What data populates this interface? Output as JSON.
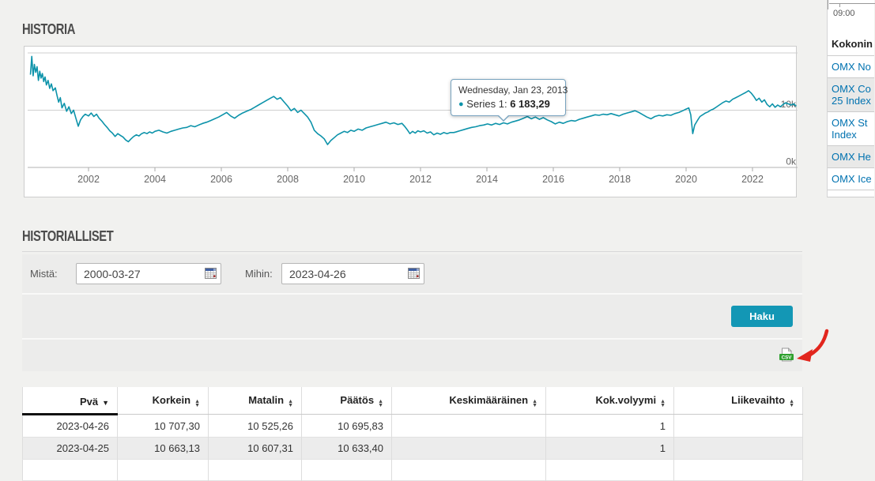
{
  "historia": {
    "title": "HISTORIA"
  },
  "chart_data": {
    "type": "line",
    "series_name": "Series 1",
    "line_color": "#0d93aa",
    "x_ticks": [
      "2002",
      "2004",
      "2006",
      "2008",
      "2010",
      "2012",
      "2014",
      "2016",
      "2018",
      "2020",
      "2022"
    ],
    "y_ticks": [
      {
        "value": 20,
        "label": ""
      },
      {
        "value": 10,
        "label": "10k"
      },
      {
        "value": 0,
        "label": "0k"
      }
    ],
    "tooltip": {
      "date": "Wednesday, Jan 23, 2013",
      "dot": "●",
      "series_label": "Series 1:",
      "value": "6 183,29"
    },
    "points": [
      [
        2000.25,
        16.2
      ],
      [
        2000.29,
        19.4
      ],
      [
        2000.33,
        16.0
      ],
      [
        2000.37,
        18.0
      ],
      [
        2000.41,
        16.6
      ],
      [
        2000.45,
        17.6
      ],
      [
        2000.49,
        15.2
      ],
      [
        2000.53,
        16.8
      ],
      [
        2000.57,
        15.6
      ],
      [
        2000.61,
        16.4
      ],
      [
        2000.65,
        15.0
      ],
      [
        2000.69,
        15.8
      ],
      [
        2000.73,
        14.4
      ],
      [
        2000.78,
        15.2
      ],
      [
        2000.83,
        13.8
      ],
      [
        2000.88,
        14.6
      ],
      [
        2000.93,
        13.4
      ],
      [
        2001.0,
        13.9
      ],
      [
        2001.05,
        12.6
      ],
      [
        2001.1,
        11.4
      ],
      [
        2001.15,
        12.2
      ],
      [
        2001.2,
        10.4
      ],
      [
        2001.27,
        11.2
      ],
      [
        2001.34,
        9.8
      ],
      [
        2001.41,
        10.6
      ],
      [
        2001.48,
        9.4
      ],
      [
        2001.55,
        10.0
      ],
      [
        2001.62,
        8.6
      ],
      [
        2001.69,
        7.2
      ],
      [
        2001.76,
        8.3
      ],
      [
        2001.83,
        8.9
      ],
      [
        2001.9,
        9.3
      ],
      [
        2002.0,
        9.0
      ],
      [
        2002.08,
        9.5
      ],
      [
        2002.16,
        8.9
      ],
      [
        2002.24,
        9.3
      ],
      [
        2002.32,
        8.6
      ],
      [
        2002.4,
        8.1
      ],
      [
        2002.48,
        7.5
      ],
      [
        2002.56,
        7.0
      ],
      [
        2002.64,
        6.4
      ],
      [
        2002.72,
        6.0
      ],
      [
        2002.8,
        5.4
      ],
      [
        2002.88,
        5.9
      ],
      [
        2002.96,
        5.6
      ],
      [
        2003.04,
        5.3
      ],
      [
        2003.12,
        4.8
      ],
      [
        2003.2,
        4.5
      ],
      [
        2003.28,
        5.0
      ],
      [
        2003.36,
        5.4
      ],
      [
        2003.44,
        5.7
      ],
      [
        2003.52,
        5.5
      ],
      [
        2003.6,
        5.9
      ],
      [
        2003.68,
        6.1
      ],
      [
        2003.76,
        5.9
      ],
      [
        2003.84,
        6.2
      ],
      [
        2003.92,
        6.0
      ],
      [
        2004.0,
        6.3
      ],
      [
        2004.12,
        6.5
      ],
      [
        2004.24,
        6.2
      ],
      [
        2004.36,
        6.0
      ],
      [
        2004.48,
        6.3
      ],
      [
        2004.6,
        6.5
      ],
      [
        2004.72,
        6.7
      ],
      [
        2004.84,
        6.9
      ],
      [
        2004.96,
        7.0
      ],
      [
        2005.08,
        7.3
      ],
      [
        2005.2,
        7.1
      ],
      [
        2005.32,
        7.4
      ],
      [
        2005.44,
        7.7
      ],
      [
        2005.56,
        7.9
      ],
      [
        2005.68,
        8.2
      ],
      [
        2005.8,
        8.5
      ],
      [
        2005.92,
        8.8
      ],
      [
        2006.04,
        9.2
      ],
      [
        2006.16,
        9.6
      ],
      [
        2006.28,
        9.0
      ],
      [
        2006.4,
        8.6
      ],
      [
        2006.52,
        9.1
      ],
      [
        2006.64,
        9.5
      ],
      [
        2006.76,
        9.8
      ],
      [
        2006.88,
        10.1
      ],
      [
        2007.0,
        10.5
      ],
      [
        2007.12,
        10.9
      ],
      [
        2007.24,
        11.3
      ],
      [
        2007.36,
        11.7
      ],
      [
        2007.48,
        12.1
      ],
      [
        2007.58,
        12.4
      ],
      [
        2007.68,
        11.9
      ],
      [
        2007.78,
        12.2
      ],
      [
        2007.88,
        11.5
      ],
      [
        2008.0,
        10.7
      ],
      [
        2008.1,
        9.9
      ],
      [
        2008.2,
        10.3
      ],
      [
        2008.3,
        9.6
      ],
      [
        2008.4,
        10.0
      ],
      [
        2008.5,
        9.4
      ],
      [
        2008.6,
        8.8
      ],
      [
        2008.7,
        7.9
      ],
      [
        2008.8,
        6.5
      ],
      [
        2008.9,
        5.9
      ],
      [
        2009.0,
        5.5
      ],
      [
        2009.1,
        5.0
      ],
      [
        2009.2,
        4.0
      ],
      [
        2009.3,
        4.7
      ],
      [
        2009.4,
        5.2
      ],
      [
        2009.5,
        5.7
      ],
      [
        2009.6,
        6.0
      ],
      [
        2009.7,
        6.3
      ],
      [
        2009.8,
        6.1
      ],
      [
        2009.9,
        6.5
      ],
      [
        2010.0,
        6.3
      ],
      [
        2010.12,
        6.7
      ],
      [
        2010.24,
        6.5
      ],
      [
        2010.36,
        6.9
      ],
      [
        2010.48,
        7.1
      ],
      [
        2010.6,
        7.3
      ],
      [
        2010.72,
        7.5
      ],
      [
        2010.84,
        7.7
      ],
      [
        2010.96,
        7.9
      ],
      [
        2011.08,
        7.6
      ],
      [
        2011.2,
        7.8
      ],
      [
        2011.32,
        7.5
      ],
      [
        2011.44,
        7.7
      ],
      [
        2011.52,
        7.2
      ],
      [
        2011.6,
        6.6
      ],
      [
        2011.68,
        5.9
      ],
      [
        2011.76,
        6.3
      ],
      [
        2011.84,
        6.0
      ],
      [
        2011.92,
        6.4
      ],
      [
        2012.0,
        6.2
      ],
      [
        2012.1,
        6.4
      ],
      [
        2012.2,
        6.0
      ],
      [
        2012.3,
        6.2
      ],
      [
        2012.4,
        5.7
      ],
      [
        2012.5,
        6.0
      ],
      [
        2012.6,
        5.8
      ],
      [
        2012.7,
        6.1
      ],
      [
        2012.8,
        5.9
      ],
      [
        2012.9,
        6.1
      ],
      [
        2013.0,
        6.1
      ],
      [
        2013.06,
        6.18
      ],
      [
        2013.18,
        6.4
      ],
      [
        2013.3,
        6.6
      ],
      [
        2013.42,
        6.8
      ],
      [
        2013.54,
        7.0
      ],
      [
        2013.66,
        7.1
      ],
      [
        2013.78,
        7.3
      ],
      [
        2013.9,
        7.4
      ],
      [
        2014.02,
        7.6
      ],
      [
        2014.14,
        7.4
      ],
      [
        2014.26,
        7.7
      ],
      [
        2014.38,
        7.5
      ],
      [
        2014.5,
        7.8
      ],
      [
        2014.62,
        7.6
      ],
      [
        2014.74,
        7.9
      ],
      [
        2014.86,
        8.1
      ],
      [
        2014.98,
        8.3
      ],
      [
        2015.1,
        8.6
      ],
      [
        2015.22,
        8.9
      ],
      [
        2015.34,
        8.5
      ],
      [
        2015.46,
        8.8
      ],
      [
        2015.58,
        8.4
      ],
      [
        2015.7,
        8.7
      ],
      [
        2015.82,
        8.3
      ],
      [
        2015.94,
        8.0
      ],
      [
        2016.06,
        7.6
      ],
      [
        2016.18,
        7.9
      ],
      [
        2016.3,
        7.7
      ],
      [
        2016.42,
        8.0
      ],
      [
        2016.54,
        8.2
      ],
      [
        2016.66,
        8.1
      ],
      [
        2016.78,
        8.4
      ],
      [
        2016.9,
        8.6
      ],
      [
        2017.02,
        8.8
      ],
      [
        2017.14,
        9.0
      ],
      [
        2017.26,
        9.2
      ],
      [
        2017.38,
        9.1
      ],
      [
        2017.5,
        9.3
      ],
      [
        2017.62,
        9.2
      ],
      [
        2017.74,
        9.4
      ],
      [
        2017.86,
        9.2
      ],
      [
        2017.98,
        9.0
      ],
      [
        2018.1,
        9.3
      ],
      [
        2018.22,
        9.5
      ],
      [
        2018.34,
        9.7
      ],
      [
        2018.46,
        9.9
      ],
      [
        2018.58,
        9.6
      ],
      [
        2018.7,
        9.2
      ],
      [
        2018.82,
        8.8
      ],
      [
        2018.94,
        8.5
      ],
      [
        2019.06,
        8.9
      ],
      [
        2019.18,
        9.1
      ],
      [
        2019.3,
        9.0
      ],
      [
        2019.42,
        9.2
      ],
      [
        2019.54,
        9.1
      ],
      [
        2019.66,
        9.4
      ],
      [
        2019.78,
        9.6
      ],
      [
        2019.9,
        9.9
      ],
      [
        2020.0,
        10.2
      ],
      [
        2020.08,
        10.4
      ],
      [
        2020.14,
        9.2
      ],
      [
        2020.2,
        5.9
      ],
      [
        2020.26,
        7.4
      ],
      [
        2020.34,
        8.2
      ],
      [
        2020.42,
        8.9
      ],
      [
        2020.5,
        9.2
      ],
      [
        2020.58,
        9.5
      ],
      [
        2020.66,
        9.7
      ],
      [
        2020.74,
        10.0
      ],
      [
        2020.82,
        10.2
      ],
      [
        2020.9,
        10.5
      ],
      [
        2021.0,
        10.9
      ],
      [
        2021.1,
        11.3
      ],
      [
        2021.2,
        11.6
      ],
      [
        2021.3,
        11.4
      ],
      [
        2021.4,
        11.9
      ],
      [
        2021.5,
        12.2
      ],
      [
        2021.6,
        12.5
      ],
      [
        2021.7,
        12.8
      ],
      [
        2021.8,
        13.1
      ],
      [
        2021.88,
        13.4
      ],
      [
        2021.96,
        13.0
      ],
      [
        2022.04,
        12.4
      ],
      [
        2022.12,
        11.7
      ],
      [
        2022.2,
        12.1
      ],
      [
        2022.28,
        11.4
      ],
      [
        2022.36,
        11.8
      ],
      [
        2022.44,
        11.0
      ],
      [
        2022.52,
        10.6
      ],
      [
        2022.6,
        11.1
      ],
      [
        2022.68,
        10.5
      ],
      [
        2022.76,
        10.9
      ],
      [
        2022.84,
        10.6
      ],
      [
        2022.92,
        11.0
      ],
      [
        2023.0,
        11.3
      ],
      [
        2023.08,
        11.1
      ],
      [
        2023.16,
        10.9
      ],
      [
        2023.24,
        11.1
      ],
      [
        2023.32,
        10.7
      ]
    ]
  },
  "sidebar": {
    "axis_time": "09:00",
    "heading": "Kokonin",
    "links": [
      {
        "label": "OMX No",
        "shaded": false
      },
      {
        "label": "OMX Co 25 Index",
        "shaded": true
      },
      {
        "label": "OMX St Index",
        "shaded": false
      },
      {
        "label": "OMX He",
        "shaded": true
      },
      {
        "label": "OMX Ice",
        "shaded": false
      }
    ]
  },
  "historialliset": {
    "title": "HISTORIALLISET",
    "from_label": "Mistä:",
    "from_value": "2000-03-27",
    "to_label": "Mihin:",
    "to_value": "2023-04-26",
    "search_button": "Haku",
    "csv_icon_label": "CSV"
  },
  "table": {
    "columns": [
      {
        "label": "Pvä",
        "sort": "desc"
      },
      {
        "label": "Korkein",
        "sort": "both"
      },
      {
        "label": "Matalin",
        "sort": "both"
      },
      {
        "label": "Päätös",
        "sort": "both"
      },
      {
        "label": "Keskimääräinen",
        "sort": "both"
      },
      {
        "label": "Kok.volyymi",
        "sort": "both"
      },
      {
        "label": "Liikevaihto",
        "sort": "both"
      }
    ],
    "rows": [
      [
        "2023-04-26",
        "10 707,30",
        "10 525,26",
        "10 695,83",
        "",
        "1",
        ""
      ],
      [
        "2023-04-25",
        "10 663,13",
        "10 607,31",
        "10 633,40",
        "",
        "1",
        ""
      ],
      [
        "",
        "",
        "",
        "",
        "",
        "",
        ""
      ]
    ]
  }
}
